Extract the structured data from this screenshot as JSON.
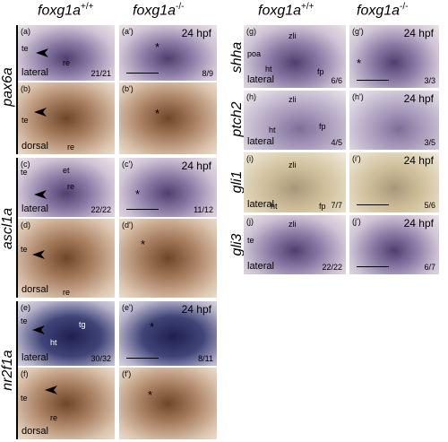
{
  "left_header": [
    {
      "gene": "foxg1a",
      "genotype": "+/+"
    },
    {
      "gene": "foxg1a",
      "genotype": "-/-"
    }
  ],
  "right_header": [
    {
      "gene": "foxg1a",
      "genotype": "+/+"
    },
    {
      "gene": "foxg1a",
      "genotype": "-/-"
    }
  ],
  "genes_left": [
    "pax6a",
    "ascl1a",
    "nr2f1a"
  ],
  "genes_right": [
    "shha",
    "ptch2",
    "gli1",
    "gli3"
  ],
  "panels": [
    {
      "label": "(a)",
      "annotations": [
        "te",
        "re"
      ],
      "view": "lateral",
      "count": "21/21"
    },
    {
      "label": "(a')",
      "stage": "24 hpf",
      "marker": "*",
      "count": "8/9"
    },
    {
      "label": "(b)",
      "annotations": [
        "te",
        "re"
      ],
      "view": "dorsal"
    },
    {
      "label": "(b')",
      "marker": "*"
    },
    {
      "label": "(c)",
      "annotations": [
        "te",
        "et",
        "re"
      ],
      "view": "lateral",
      "count": "22/22"
    },
    {
      "label": "(c')",
      "stage": "24 hpf",
      "marker": "*",
      "count": "11/12"
    },
    {
      "label": "(d)",
      "annotations": [
        "te",
        "re"
      ],
      "view": "dorsal"
    },
    {
      "label": "(d')",
      "marker": "*"
    },
    {
      "label": "(e)",
      "annotations": [
        "te",
        "tg",
        "ht"
      ],
      "view": "lateral",
      "count": "30/32"
    },
    {
      "label": "(e')",
      "stage": "24 hpf",
      "marker": "*",
      "count": "8/11"
    },
    {
      "label": "(f)",
      "annotations": [
        "te",
        "re"
      ],
      "view": "dorsal"
    },
    {
      "label": "(f')",
      "marker": "*"
    },
    {
      "label": "(g)",
      "annotations": [
        "poa",
        "zli",
        "ht",
        "fp"
      ],
      "view": "lateral",
      "count": "6/6"
    },
    {
      "label": "(g')",
      "stage": "24 hpf",
      "marker": "*",
      "count": "3/3"
    },
    {
      "label": "(h)",
      "annotations": [
        "zli",
        "ht",
        "fp"
      ],
      "view": "lateral",
      "count": "4/5"
    },
    {
      "label": "(h')",
      "stage": "24 hpf",
      "count": "3/5"
    },
    {
      "label": "(i)",
      "annotations": [
        "zli",
        "ht",
        "fp"
      ],
      "view": "lateral",
      "count": "7/7"
    },
    {
      "label": "(i')",
      "stage": "24 hpf",
      "count": "5/6"
    },
    {
      "label": "(j)",
      "annotations": [
        "zli",
        "te"
      ],
      "view": "lateral",
      "count": "22/22"
    },
    {
      "label": "(j')",
      "stage": "24 hpf",
      "count": "6/7"
    }
  ]
}
